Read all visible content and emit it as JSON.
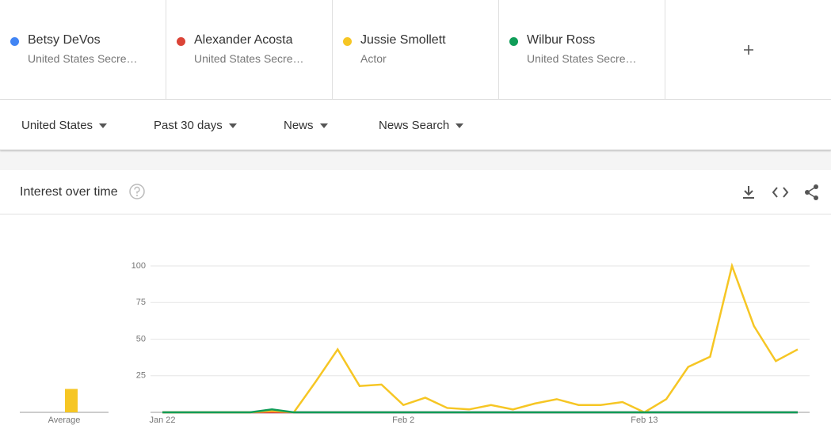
{
  "terms": [
    {
      "name": "Betsy DeVos",
      "subtitle": "United States Secre…"
    },
    {
      "name": "Alexander Acosta",
      "subtitle": "United States Secre…"
    },
    {
      "name": "Jussie Smollett",
      "subtitle": "Actor"
    },
    {
      "name": "Wilbur Ross",
      "subtitle": "United States Secre…"
    }
  ],
  "filters": [
    "United States",
    "Past 30 days",
    "News",
    "News Search"
  ],
  "card_title": "Interest over time",
  "chart_data": {
    "type": "line",
    "categories": [
      "Jan 22",
      null,
      null,
      null,
      null,
      null,
      null,
      null,
      null,
      null,
      null,
      "Feb 2",
      null,
      null,
      null,
      null,
      null,
      null,
      null,
      null,
      null,
      null,
      "Feb 13",
      null,
      null,
      null,
      null,
      null,
      null,
      null
    ],
    "series": [
      {
        "name": "Betsy DeVos",
        "color": "#4285f4",
        "values": [
          0,
          0,
          0,
          0,
          0,
          0,
          0,
          0,
          0,
          0,
          0,
          0,
          0,
          0,
          0,
          0,
          0,
          0,
          0,
          0,
          0,
          0,
          0,
          0,
          0,
          0,
          0,
          0,
          0,
          0
        ],
        "average": 0
      },
      {
        "name": "Alexander Acosta",
        "color": "#db4437",
        "values": [
          0,
          0,
          0,
          0,
          0,
          0,
          0,
          0,
          0,
          0,
          0,
          0,
          0,
          0,
          0,
          0,
          0,
          0,
          0,
          0,
          0,
          0,
          0,
          0,
          0,
          0,
          0,
          0,
          0,
          0
        ],
        "average": 0
      },
      {
        "name": "Jussie Smollett",
        "color": "#f6c624",
        "values": [
          0,
          0,
          0,
          0,
          0,
          1,
          0,
          21,
          43,
          18,
          19,
          5,
          10,
          3,
          2,
          5,
          2,
          6,
          9,
          5,
          5,
          7,
          0,
          9,
          31,
          38,
          100,
          59,
          35,
          43
        ],
        "average": 16
      },
      {
        "name": "Wilbur Ross",
        "color": "#0f9d58",
        "values": [
          0,
          0,
          0,
          0,
          0,
          2,
          0,
          0,
          0,
          0,
          0,
          0,
          0,
          0,
          0,
          0,
          0,
          0,
          0,
          0,
          0,
          0,
          0,
          0,
          0,
          0,
          0,
          0,
          0,
          0
        ],
        "average": 0
      }
    ],
    "average_label": "Average",
    "ylim": [
      0,
      100
    ],
    "yticks": [
      25,
      50,
      75,
      100
    ],
    "grid": true
  }
}
